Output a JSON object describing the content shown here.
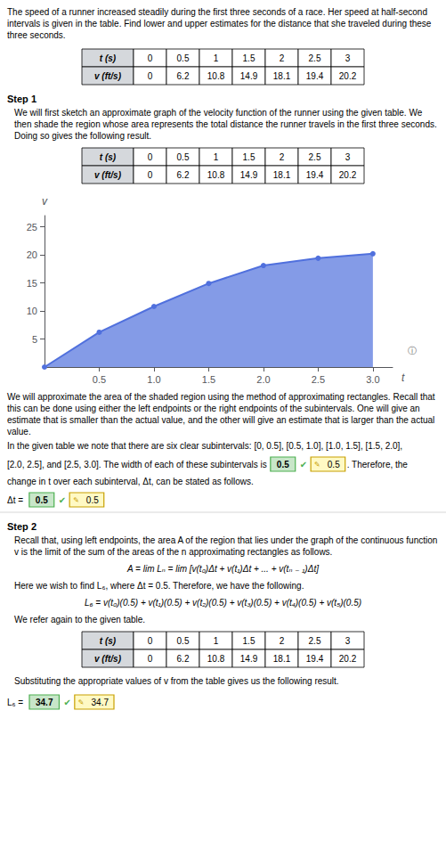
{
  "chart_data": {
    "type": "area",
    "title": "The speed of a runner increased steadily during the first three seconds of a race. Her speed at half-second\nintervals is given in the table. Find lower and upper estimates for the distance that she traveled during these\nthree seconds.",
    "x": [
      0,
      0.5,
      1,
      1.5,
      2,
      2.5,
      3
    ],
    "values": [
      0,
      6.2,
      10.8,
      14.9,
      18.1,
      19.4,
      20.2
    ],
    "xlabel": "t",
    "ylabel": "v",
    "xlim": [
      0,
      3.18
    ],
    "ylim": [
      0,
      27
    ],
    "xticks": [
      0.5,
      {
        "value": 1,
        "label": "1.0"
      },
      1.5,
      {
        "value": 2,
        "label": "2.0"
      },
      2.5,
      {
        "value": 3,
        "label": "3.0"
      }
    ],
    "yticks": [
      5,
      10,
      15,
      20,
      25
    ],
    "grid": false,
    "marker": "circle",
    "annotations": [
      [
        "t (s)",
        "v (ft/s)"
      ],
      "Step 1",
      "We will first sketch an approximate graph of the velocity function of the runner using the given table. We then\nshade the region whose area represents the total distance the runner travels in the first three seconds. Doing\nso gives the following result.",
      [
        "t (s)",
        "v (ft/s)"
      ],
      "ⓘ",
      "We will approximate the area of the shaded region using the method of approximating rectangles. Recall that\nthis can be done using either the left endpoints or the right endpoints of the subintervals. One will give an\nestimate that is smaller than the actual value, and the other will give an estimate that is larger than the actual\nvalue.",
      "In the given table we note that there are six clear subintervals: [0, 0.5], [0.5, 1.0], [1.0, 1.5], [1.5, 2.0],",
      [
        "[2.0, 2.5], and [2.5, 3.0]. The width of each of these subintervals is",
        [
          "0.5"
        ],
        "✔",
        [
          "✎",
          "0.5"
        ],
        ". Therefore, the"
      ],
      "change in t over each subinterval, Δt, can be stated as follows.",
      [
        "Δt = ",
        [
          "0.5"
        ],
        "✔",
        [
          "✎",
          "0.5"
        ]
      ],
      "Step 2",
      "Recall that, using left endpoints, the area A of the region that lies under the graph of the continuous function v\nis the limit of the sum of the areas of the n approximating rectangles as follows.",
      "A = lim Lₙ = lim [v(t₀)Δt + v(t₁)Δt + ... + v(tₙ ₋ ₁)Δt]",
      "Here we wish to find L₆, where Δt = 0.5. Therefore, we have the following.",
      "L₆ = v(t₀)(0.5) + v(t₁)(0.5) + v(t₂)(0.5) + v(t₃)(0.5) + v(t₄)(0.5) + v(t₅)(0.5)",
      "We refer again to the given table.",
      [
        "t (s)",
        "v (ft/s)"
      ],
      "Substituting the appropriate values of v from the table gives us the following result.",
      [
        "L₆ = ",
        [
          "34.7"
        ],
        "✔",
        [
          "✎",
          "34.7"
        ]
      ]
    ]
  }
}
